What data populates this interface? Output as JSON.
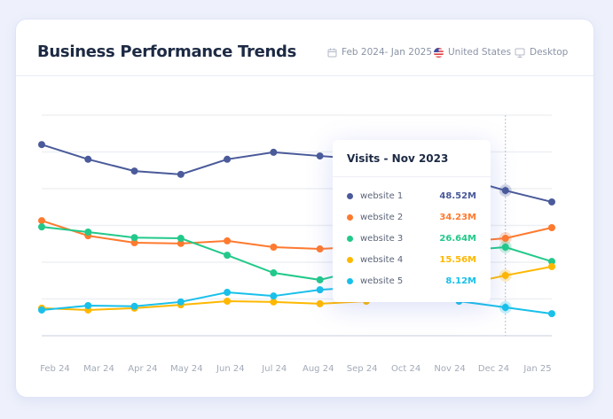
{
  "header": {
    "title": "Business Performance Trends",
    "date_range": "Feb 2024- Jan 2025",
    "country": "United States",
    "device": "Desktop"
  },
  "tooltip": {
    "title": "Visits - Nov 2023",
    "rows": [
      {
        "name": "website 1",
        "value": "48.52M",
        "color": "#4a5a9a"
      },
      {
        "name": "website 2",
        "value": "34.23M",
        "color": "#ff7a2f"
      },
      {
        "name": "website 3",
        "value": "26.64M",
        "color": "#22c98a"
      },
      {
        "name": "website 4",
        "value": "15.56M",
        "color": "#ffb800"
      },
      {
        "name": "website 5",
        "value": "8.12M",
        "color": "#18c0ea"
      }
    ]
  },
  "chart_data": {
    "type": "line",
    "categories": [
      "Feb 24",
      "Mar 24",
      "Apr 24",
      "May 24",
      "Jun 24",
      "Jul 24",
      "Aug 24",
      "Sep 24",
      "Oct 24",
      "Nov 24",
      "Dec 24",
      "Jan 25"
    ],
    "ylim": [
      0,
      60
    ],
    "grid": true,
    "highlighted_category": "Dec 24",
    "series": [
      {
        "name": "website 1",
        "color": "#4a5a9a",
        "values": [
          52.0,
          48.0,
          44.8,
          43.9,
          48.0,
          49.9,
          48.9,
          48.0,
          46.0,
          43.1,
          39.5,
          36.4
        ]
      },
      {
        "name": "website 2",
        "color": "#ff7a2f",
        "values": [
          31.3,
          27.2,
          25.3,
          25.1,
          25.8,
          24.1,
          23.6,
          24.3,
          24.8,
          25.5,
          26.5,
          29.4
        ]
      },
      {
        "name": "website 3",
        "color": "#22c98a",
        "values": [
          29.6,
          28.2,
          26.7,
          26.5,
          21.9,
          17.1,
          15.2,
          18.3,
          21.4,
          23.1,
          24.1,
          20.2
        ]
      },
      {
        "name": "website 4",
        "color": "#ffb800",
        "values": [
          7.5,
          7.0,
          7.5,
          8.4,
          9.4,
          9.2,
          8.7,
          9.4,
          11.3,
          13.7,
          16.4,
          18.8
        ]
      },
      {
        "name": "website 5",
        "color": "#18c0ea",
        "values": [
          7.0,
          8.2,
          8.0,
          9.2,
          11.8,
          10.8,
          12.5,
          13.3,
          11.8,
          9.4,
          7.7,
          6.0
        ]
      }
    ]
  }
}
